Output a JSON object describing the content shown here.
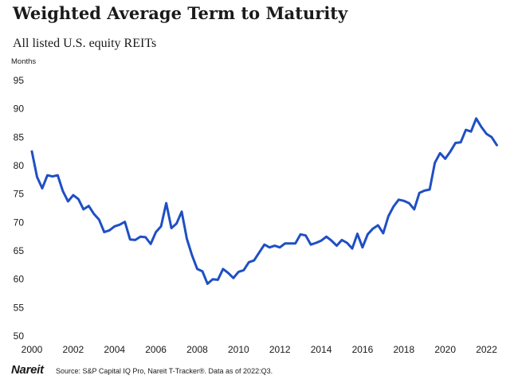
{
  "header": {
    "title": "Weighted Average Term to Maturity",
    "subtitle": "All listed U.S. equity REITs"
  },
  "footer": {
    "logo_text": "Nareit",
    "source": "Source: S&P Capital IQ Pro, Nareit T-Tracker®. Data as of 2022:Q3."
  },
  "colors": {
    "line": "#1f4fc4",
    "text": "#1a1a1a"
  },
  "chart_data": {
    "type": "line",
    "title": "Weighted Average Term to Maturity",
    "subtitle": "All listed U.S. equity REITs",
    "xlabel": "",
    "ylabel": "Months",
    "xlim": [
      2000,
      2022.75
    ],
    "ylim": [
      50,
      95
    ],
    "x_ticks": [
      2000,
      2002,
      2004,
      2006,
      2008,
      2010,
      2012,
      2014,
      2016,
      2018,
      2020,
      2022
    ],
    "y_ticks": [
      50,
      55,
      60,
      65,
      70,
      75,
      80,
      85,
      90,
      95
    ],
    "grid": false,
    "series": [
      {
        "name": "Weighted Average Term to Maturity",
        "x": [
          2000.0,
          2000.25,
          2000.5,
          2000.75,
          2001.0,
          2001.25,
          2001.5,
          2001.75,
          2002.0,
          2002.25,
          2002.5,
          2002.75,
          2003.0,
          2003.25,
          2003.5,
          2003.75,
          2004.0,
          2004.25,
          2004.5,
          2004.75,
          2005.0,
          2005.25,
          2005.5,
          2005.75,
          2006.0,
          2006.25,
          2006.5,
          2006.75,
          2007.0,
          2007.25,
          2007.5,
          2007.75,
          2008.0,
          2008.25,
          2008.5,
          2008.75,
          2009.0,
          2009.25,
          2009.5,
          2009.75,
          2010.0,
          2010.25,
          2010.5,
          2010.75,
          2011.0,
          2011.25,
          2011.5,
          2011.75,
          2012.0,
          2012.25,
          2012.5,
          2012.75,
          2013.0,
          2013.25,
          2013.5,
          2013.75,
          2014.0,
          2014.25,
          2014.5,
          2014.75,
          2015.0,
          2015.25,
          2015.5,
          2015.75,
          2016.0,
          2016.25,
          2016.5,
          2016.75,
          2017.0,
          2017.25,
          2017.5,
          2017.75,
          2018.0,
          2018.25,
          2018.5,
          2018.75,
          2019.0,
          2019.25,
          2019.5,
          2019.75,
          2020.0,
          2020.25,
          2020.5,
          2020.75,
          2021.0,
          2021.25,
          2021.5,
          2021.75,
          2022.0,
          2022.25,
          2022.5
        ],
        "values": [
          82.5,
          78.0,
          76.0,
          78.3,
          78.1,
          78.3,
          75.5,
          73.7,
          74.8,
          74.1,
          72.3,
          72.9,
          71.5,
          70.5,
          68.3,
          68.6,
          69.3,
          69.6,
          70.1,
          67.0,
          66.9,
          67.5,
          67.4,
          66.2,
          68.3,
          69.3,
          73.4,
          69.0,
          69.8,
          71.9,
          67.1,
          64.2,
          61.8,
          61.4,
          59.2,
          60.0,
          59.9,
          61.8,
          61.1,
          60.2,
          61.3,
          61.6,
          63.0,
          63.3,
          64.7,
          66.1,
          65.6,
          65.9,
          65.6,
          66.3,
          66.3,
          66.3,
          67.9,
          67.7,
          66.1,
          66.4,
          66.8,
          67.5,
          66.8,
          65.9,
          66.9,
          66.4,
          65.4,
          68.0,
          65.6,
          67.9,
          68.9,
          69.5,
          68.1,
          71.1,
          72.8,
          74.0,
          73.8,
          73.4,
          72.3,
          75.2,
          75.6,
          75.8,
          80.5,
          82.2,
          81.2,
          82.5,
          84.0,
          84.1,
          86.3,
          86.0,
          88.3,
          86.8,
          85.6,
          85.0,
          83.6
        ]
      }
    ]
  }
}
